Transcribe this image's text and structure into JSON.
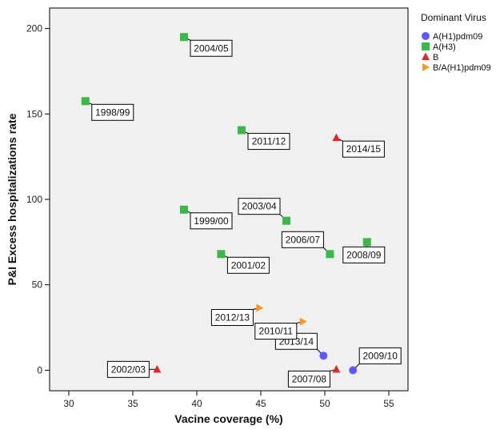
{
  "chart_data": {
    "type": "scatter",
    "title": "",
    "xlabel": "Vacine coverage (%)",
    "ylabel": "P&I Excess hospitalizations rate",
    "xlim": [
      28.5,
      56.5
    ],
    "ylim": [
      -12,
      212
    ],
    "xticks": [
      30,
      35,
      40,
      45,
      50,
      55
    ],
    "yticks": [
      0,
      50,
      100,
      150,
      200
    ],
    "grid": false,
    "legend": {
      "title": "Dominant Virus",
      "placement": "right",
      "entries": [
        {
          "name": "A(H1)pdm09",
          "color": "#5a5aff",
          "marker": "circle"
        },
        {
          "name": "A(H3)",
          "color": "#3cb84a",
          "marker": "square"
        },
        {
          "name": "B",
          "color": "#d92b2b",
          "marker": "triangle"
        },
        {
          "name": "B/A(H1)pdm09",
          "color": "#f59a23",
          "marker": "triangle-right"
        }
      ]
    },
    "series": [
      {
        "name": "A(H1)pdm09",
        "points": [
          {
            "label": "2013/14",
            "x": 49.9,
            "y": 8.5,
            "pos": "nw"
          },
          {
            "label": "2009/10",
            "x": 52.2,
            "y": 0,
            "pos": "ne"
          }
        ]
      },
      {
        "name": "A(H3)",
        "points": [
          {
            "label": "2004/05",
            "x": 39.0,
            "y": 195,
            "pos": "se"
          },
          {
            "label": "1998/99",
            "x": 31.3,
            "y": 157.5,
            "pos": "se"
          },
          {
            "label": "2011/12",
            "x": 43.5,
            "y": 140.5,
            "pos": "se"
          },
          {
            "label": "1999/00",
            "x": 39.0,
            "y": 94,
            "pos": "se"
          },
          {
            "label": "2003/04",
            "x": 47.0,
            "y": 87.5,
            "pos": "nw"
          },
          {
            "label": "2006/07",
            "x": 50.4,
            "y": 68,
            "pos": "nw"
          },
          {
            "label": "2008/09",
            "x": 53.3,
            "y": 75,
            "pos": "s"
          },
          {
            "label": "2001/02",
            "x": 41.9,
            "y": 68,
            "pos": "se"
          }
        ]
      },
      {
        "name": "B",
        "points": [
          {
            "label": "2014/15",
            "x": 50.9,
            "y": 136,
            "pos": "se"
          },
          {
            "label": "2002/03",
            "x": 36.9,
            "y": 0.5,
            "pos": "w"
          },
          {
            "label": "2007/08",
            "x": 50.9,
            "y": 0.5,
            "pos": "sw"
          }
        ]
      },
      {
        "name": "B/A(H1)pdm09",
        "points": [
          {
            "label": "2012/13",
            "x": 44.9,
            "y": 36.5,
            "pos": "sw"
          },
          {
            "label": "2010/11",
            "x": 48.3,
            "y": 28.5,
            "pos": "sw"
          }
        ]
      }
    ]
  }
}
